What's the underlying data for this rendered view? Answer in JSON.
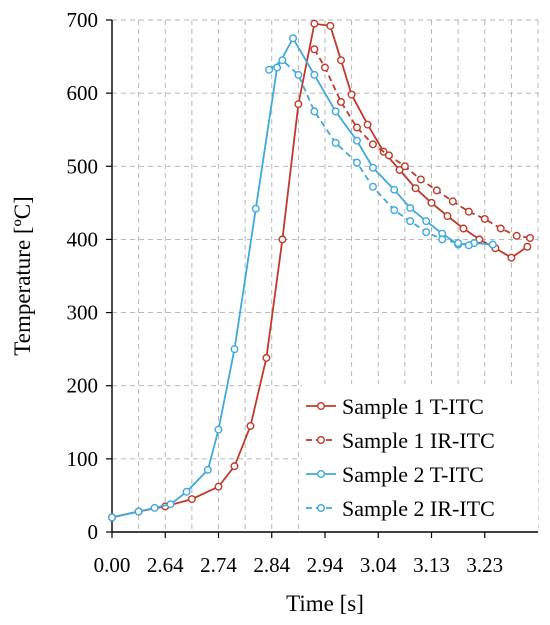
{
  "chart_data": {
    "type": "line",
    "xlabel": "Time [s]",
    "ylabel": "Temperature [ºC]",
    "x_tick_labels": [
      "0.00",
      "2.64",
      "2.74",
      "2.84",
      "2.94",
      "3.04",
      "3.13",
      "3.23"
    ],
    "y_tick_labels": [
      "0",
      "100",
      "200",
      "300",
      "400",
      "500",
      "600",
      "700"
    ],
    "ylim": [
      0,
      700
    ],
    "xlim": [
      0,
      8
    ],
    "grid": true,
    "legend_position": "bottom-right",
    "series": [
      {
        "name": "Sample 1 T-ITC",
        "color": "#c0392b",
        "dash": false,
        "x": [
          0.0,
          0.5,
          1.0,
          1.5,
          2.0,
          2.3,
          2.6,
          2.9,
          3.2,
          3.5,
          3.8,
          4.1,
          4.3,
          4.5,
          4.8,
          5.1,
          5.4,
          5.7,
          6.0,
          6.3,
          6.6,
          6.9,
          7.2,
          7.5,
          7.8
        ],
        "y": [
          20,
          28,
          35,
          45,
          62,
          90,
          145,
          238,
          400,
          585,
          695,
          692,
          645,
          598,
          557,
          520,
          495,
          470,
          450,
          432,
          415,
          400,
          388,
          375,
          390
        ]
      },
      {
        "name": "Sample 1 IR-ITC",
        "color": "#c0392b",
        "dash": true,
        "x": [
          3.8,
          4.0,
          4.3,
          4.6,
          4.9,
          5.2,
          5.5,
          5.8,
          6.1,
          6.4,
          6.7,
          7.0,
          7.3,
          7.6,
          7.85
        ],
        "y": [
          660,
          635,
          588,
          553,
          530,
          515,
          500,
          482,
          467,
          452,
          438,
          428,
          415,
          405,
          402
        ]
      },
      {
        "name": "Sample 2 T-ITC",
        "color": "#3fa9dc",
        "dash": false,
        "x": [
          0.0,
          0.5,
          0.8,
          1.1,
          1.4,
          1.8,
          2.0,
          2.3,
          2.7,
          3.1,
          3.4,
          3.8,
          4.2,
          4.6,
          4.9,
          5.3,
          5.6,
          5.9,
          6.2,
          6.5,
          6.8,
          7.15
        ],
        "y": [
          20,
          28,
          33,
          38,
          55,
          85,
          140,
          250,
          442,
          635,
          675,
          625,
          575,
          535,
          498,
          468,
          443,
          425,
          408,
          393,
          395,
          393
        ]
      },
      {
        "name": "Sample 2 IR-ITC",
        "color": "#3fa9dc",
        "dash": true,
        "x": [
          2.95,
          3.2,
          3.5,
          3.8,
          4.2,
          4.6,
          4.9,
          5.3,
          5.6,
          5.9,
          6.2,
          6.5,
          6.7
        ],
        "y": [
          632,
          645,
          625,
          575,
          532,
          505,
          472,
          440,
          425,
          410,
          400,
          395,
          392
        ]
      }
    ]
  }
}
